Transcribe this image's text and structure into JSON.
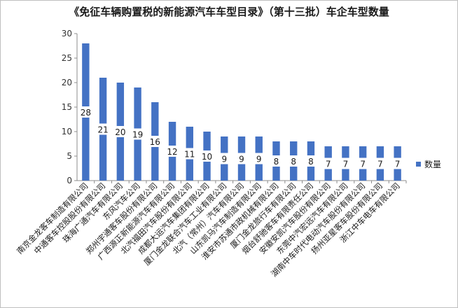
{
  "chart_data": {
    "type": "bar",
    "title": "《免征车辆购置税的新能源汽车车型目录》（第十三批）车企车型数量",
    "categories": [
      "南京金龙客车制造有限公司",
      "中通客车控股股份有限公司",
      "珠海广通汽车有限公司",
      "东风汽车公司",
      "郑州宇通客车股份有限公司",
      "广西源正新能源汽车有限公司",
      "北汽福田汽车股份有限公司",
      "成都大运汽车集团有限公司",
      "厦门金龙联合汽车工业有限公司",
      "北汽（常州）汽车有限公司",
      "山东凯马汽车制造有限公司",
      "淮安市苏通市政机械有限公司",
      "厦门金龙旅行车有限公司",
      "烟台舒驰客车有限责任公司",
      "安徽安凯汽车股份有限公司",
      "东莞中汽宏远汽车有限公司",
      "湖南中车时代电动汽车股份有限公司",
      "扬州亚星客车股份有限公司",
      "浙江中车电车有限公司"
    ],
    "series": [
      {
        "name": "数量",
        "values": [
          28,
          21,
          20,
          19,
          16,
          12,
          11,
          10,
          9,
          9,
          9,
          8,
          8,
          8,
          7,
          7,
          7,
          7,
          7
        ],
        "color": "#4472c4"
      }
    ],
    "ylim": [
      0,
      30
    ],
    "yticks": [
      0,
      5,
      10,
      15,
      20,
      25,
      30
    ],
    "grid": false,
    "legend": "right"
  }
}
